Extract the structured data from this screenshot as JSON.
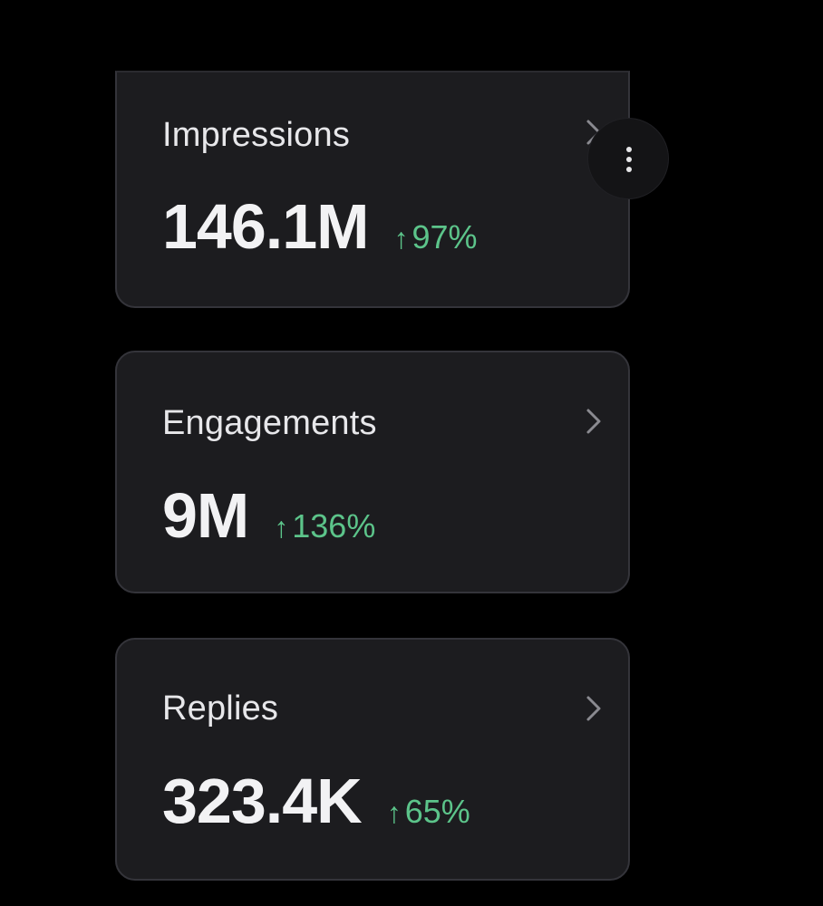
{
  "cards": [
    {
      "title": "Impressions",
      "value": "146.1M",
      "change_arrow": "↑",
      "change_percent": "97%"
    },
    {
      "title": "Engagements",
      "value": "9M",
      "change_arrow": "↑",
      "change_percent": "136%"
    },
    {
      "title": "Replies",
      "value": "323.4K",
      "change_arrow": "↑",
      "change_percent": "65%"
    }
  ],
  "icons": {
    "chevron": "chevron-right-icon",
    "more": "more-vertical-icon",
    "arrow": "arrow-up-icon"
  },
  "colors": {
    "background": "#000000",
    "card_background": "#1c1c1f",
    "card_border": "#34343a",
    "text_primary": "#f2f2f4",
    "positive_change": "#5cc48a"
  }
}
